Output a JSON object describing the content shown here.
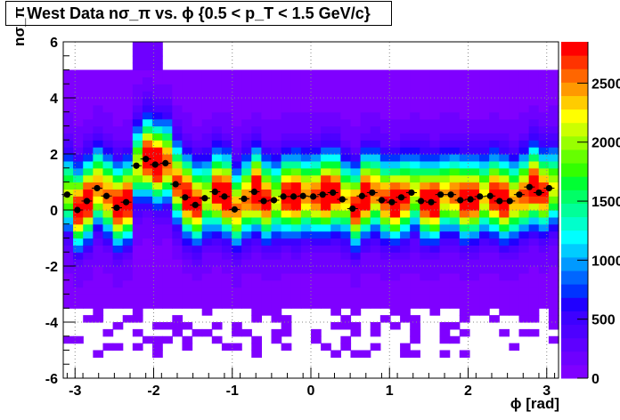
{
  "chart_data": {
    "type": "heatmap",
    "title": "West Data nσ_π vs. ϕ {0.5 < p_T < 1.5 GeV/c}",
    "xlabel": "ϕ [rad]",
    "ylabel": "nσ_π",
    "xlim": [
      -3.15,
      3.15
    ],
    "ylim": [
      -6,
      6
    ],
    "x_ticks": [
      -3,
      -2,
      -1,
      0,
      1,
      2,
      3
    ],
    "y_ticks": [
      -6,
      -4,
      -2,
      0,
      2,
      4,
      6
    ],
    "z_ticks": [
      0,
      500,
      1000,
      1500,
      2000,
      2500
    ],
    "z_tick_labels": [
      "0",
      "500",
      "1000",
      "1500",
      "2000",
      "2500"
    ],
    "zlim": [
      0,
      2850
    ],
    "color_scale": [
      "#7f00ff",
      "#6e00ff",
      "#5e00ff",
      "#4d00ff",
      "#3d00ff",
      "#2000ff",
      "#0033ff",
      "#0066ff",
      "#0099ff",
      "#00ccff",
      "#00ffff",
      "#00ffcc",
      "#00ff99",
      "#00ff66",
      "#00ff33",
      "#33ff00",
      "#66ff00",
      "#99ff00",
      "#ccff00",
      "#ffff00",
      "#ffcc00",
      "#ff9900",
      "#ff6600",
      "#ff3300",
      "#ff0000"
    ],
    "profile_series": {
      "name": "mean",
      "x": [
        -3.1,
        -2.97,
        -2.85,
        -2.72,
        -2.6,
        -2.47,
        -2.35,
        -2.22,
        -2.1,
        -1.98,
        -1.85,
        -1.72,
        -1.6,
        -1.47,
        -1.35,
        -1.22,
        -1.1,
        -0.97,
        -0.85,
        -0.72,
        -0.6,
        -0.47,
        -0.35,
        -0.22,
        -0.1,
        0.03,
        0.15,
        0.28,
        0.4,
        0.53,
        0.65,
        0.78,
        0.9,
        1.03,
        1.15,
        1.28,
        1.4,
        1.53,
        1.65,
        1.78,
        1.9,
        2.03,
        2.15,
        2.28,
        2.4,
        2.53,
        2.65,
        2.78,
        2.9,
        3.03
      ],
      "y": [
        0.55,
        0.0,
        0.32,
        0.78,
        0.5,
        0.08,
        0.28,
        1.58,
        1.82,
        1.62,
        1.67,
        0.92,
        0.45,
        0.18,
        0.42,
        0.65,
        0.48,
        0.02,
        0.4,
        0.65,
        0.32,
        0.35,
        0.48,
        0.48,
        0.5,
        0.48,
        0.55,
        0.62,
        0.38,
        0.05,
        0.5,
        0.62,
        0.35,
        0.28,
        0.45,
        0.62,
        0.32,
        0.28,
        0.55,
        0.55,
        0.35,
        0.38,
        0.48,
        0.5,
        0.32,
        0.32,
        0.55,
        0.82,
        0.62,
        0.78
      ]
    }
  }
}
